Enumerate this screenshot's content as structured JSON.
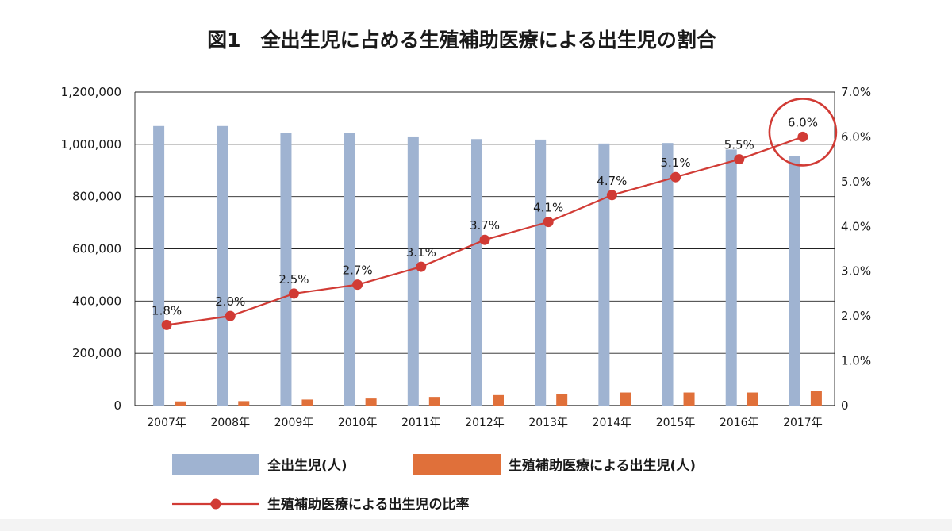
{
  "chart_data": {
    "type": "bar+line",
    "title": "図1　全出生児に占める生殖補助医療による出生児の割合",
    "categories": [
      "2007年",
      "2008年",
      "2009年",
      "2010年",
      "2011年",
      "2012年",
      "2013年",
      "2014年",
      "2015年",
      "2016年",
      "2017年"
    ],
    "y_left": {
      "ylim": [
        0,
        1200000
      ],
      "ticks": [
        "0",
        "200,000",
        "400,000",
        "600,000",
        "800,000",
        "1,000,000",
        "1,200,000"
      ]
    },
    "y_right": {
      "ylim": [
        0,
        7.0
      ],
      "ticks": [
        "0",
        "1.0%",
        "2.0%",
        "3.0%",
        "4.0%",
        "5.0%",
        "6.0%",
        "7.0%"
      ]
    },
    "series": [
      {
        "name": "全出生児(人)",
        "type": "bar",
        "axis": "left",
        "color": "#9fb3d1",
        "values": [
          1070000,
          1070000,
          1045000,
          1045000,
          1030000,
          1020000,
          1018000,
          1003000,
          1005000,
          980000,
          955000
        ]
      },
      {
        "name": "生殖補助医療による出生児(人)",
        "type": "bar",
        "axis": "left",
        "color": "#e0703a",
        "values": [
          16000,
          17000,
          23000,
          27000,
          33000,
          40000,
          44000,
          50000,
          50000,
          50000,
          55000
        ]
      },
      {
        "name": "生殖補助医療による出生児の比率",
        "type": "line",
        "axis": "right",
        "color": "#d13b35",
        "values": [
          1.8,
          2.0,
          2.5,
          2.7,
          3.1,
          3.7,
          4.1,
          4.7,
          5.1,
          5.5,
          6.0
        ],
        "labels": [
          "1.8%",
          "2.0%",
          "2.5%",
          "2.7%",
          "3.1%",
          "3.7%",
          "4.1%",
          "4.7%",
          "5.1%",
          "5.5%",
          "6.0%"
        ]
      }
    ],
    "highlight": {
      "category": "2017年",
      "shape": "circle",
      "color": "#d13b35"
    },
    "grid": true,
    "legend": "bottom"
  }
}
